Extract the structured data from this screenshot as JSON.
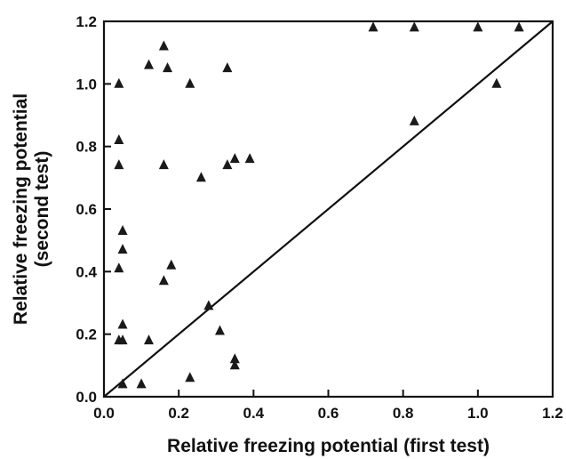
{
  "chart_data": {
    "type": "scatter",
    "xlabel": "Relative freezing potential (first test)",
    "ylabel_line1": "Relative freezing potential",
    "ylabel_line2": "(second test)",
    "xlim": [
      0,
      1.2
    ],
    "ylim": [
      0,
      1.2
    ],
    "x_ticks": [
      "0.0",
      "0.2",
      "0.4",
      "0.6",
      "0.8",
      "1.0",
      "1.2"
    ],
    "y_ticks": [
      "0.0",
      "0.2",
      "0.4",
      "0.6",
      "0.8",
      "1.0",
      "1.2"
    ],
    "grid": false,
    "reference_line": {
      "from": [
        0,
        0
      ],
      "to": [
        1.2,
        1.2
      ]
    },
    "marker": "filled-triangle",
    "points": [
      {
        "x": 0.04,
        "y": 1.0
      },
      {
        "x": 0.04,
        "y": 0.82
      },
      {
        "x": 0.04,
        "y": 0.74
      },
      {
        "x": 0.05,
        "y": 0.53
      },
      {
        "x": 0.05,
        "y": 0.47
      },
      {
        "x": 0.04,
        "y": 0.41
      },
      {
        "x": 0.05,
        "y": 0.23
      },
      {
        "x": 0.04,
        "y": 0.18
      },
      {
        "x": 0.05,
        "y": 0.18
      },
      {
        "x": 0.05,
        "y": 0.04
      },
      {
        "x": 0.1,
        "y": 0.04
      },
      {
        "x": 0.12,
        "y": 1.06
      },
      {
        "x": 0.12,
        "y": 0.18
      },
      {
        "x": 0.16,
        "y": 1.12
      },
      {
        "x": 0.17,
        "y": 1.05
      },
      {
        "x": 0.16,
        "y": 0.74
      },
      {
        "x": 0.16,
        "y": 0.37
      },
      {
        "x": 0.18,
        "y": 0.42
      },
      {
        "x": 0.23,
        "y": 1.0
      },
      {
        "x": 0.23,
        "y": 0.06
      },
      {
        "x": 0.26,
        "y": 0.7
      },
      {
        "x": 0.28,
        "y": 0.29
      },
      {
        "x": 0.31,
        "y": 0.21
      },
      {
        "x": 0.33,
        "y": 1.05
      },
      {
        "x": 0.33,
        "y": 0.74
      },
      {
        "x": 0.35,
        "y": 0.76
      },
      {
        "x": 0.35,
        "y": 0.12
      },
      {
        "x": 0.35,
        "y": 0.1
      },
      {
        "x": 0.39,
        "y": 0.76
      },
      {
        "x": 0.72,
        "y": 1.18
      },
      {
        "x": 0.83,
        "y": 1.18
      },
      {
        "x": 0.83,
        "y": 0.88
      },
      {
        "x": 1.0,
        "y": 1.18
      },
      {
        "x": 1.05,
        "y": 1.0
      },
      {
        "x": 1.11,
        "y": 1.18
      }
    ],
    "colors": {
      "marker": "#1a1a1a",
      "axis": "#111111",
      "background": "#ffffff"
    }
  }
}
